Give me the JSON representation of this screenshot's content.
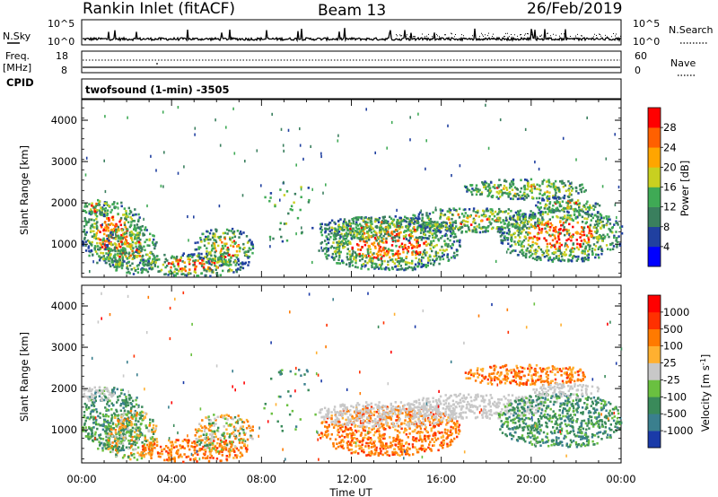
{
  "header": {
    "station": "Rankin Inlet (fitACF)",
    "beam": "Beam 13",
    "date": "26/Feb/2019"
  },
  "nsky_panel": {
    "left_label": "N.Sky",
    "right_label": "N.Search",
    "left_ticks": [
      "10^5",
      "10^0"
    ],
    "right_ticks": [
      "10^5",
      "10^0"
    ]
  },
  "freq_panel": {
    "left_label_1": "Freq.",
    "left_label_2": "[MHz]",
    "right_label": "Nave",
    "left_ticks": [
      "18",
      "8"
    ],
    "right_ticks": [
      "60",
      "0"
    ]
  },
  "cpid": {
    "label": "CPID",
    "value": "twofsound (1-min) -3505"
  },
  "chart_data": [
    {
      "type": "heatmap",
      "name": "power",
      "ylabel": "Slant Range [km]",
      "ylim": [
        200,
        4500
      ],
      "y_ticks": [
        "1000",
        "2000",
        "3000",
        "4000"
      ],
      "x_ticks": [
        "00:00",
        "04:00",
        "08:00",
        "12:00",
        "16:00",
        "20:00",
        "00:00"
      ],
      "xlim_hours": [
        0,
        24
      ],
      "colorbar": {
        "label": "Power [dB]",
        "ticks": [
          "4",
          "8",
          "12",
          "16",
          "20",
          "24",
          "28"
        ],
        "colors": [
          "#0000ff",
          "#2040a0",
          "#3a7f5e",
          "#3faa55",
          "#c8d020",
          "#ffa500",
          "#ff6000",
          "#ff0000"
        ]
      }
    },
    {
      "type": "heatmap",
      "name": "velocity",
      "ylabel": "Slant Range [km]",
      "xlabel": "Time UT",
      "ylim": [
        200,
        4500
      ],
      "y_ticks": [
        "1000",
        "2000",
        "3000",
        "4000"
      ],
      "x_ticks": [
        "00:00",
        "04:00",
        "08:00",
        "12:00",
        "16:00",
        "20:00",
        "00:00"
      ],
      "xlim_hours": [
        0,
        24
      ],
      "colorbar": {
        "label": "Velocity [m s",
        "label_sup": "-1",
        "label_end": "]",
        "ticks": [
          "1000",
          "500",
          "100",
          "25",
          "-25",
          "-100",
          "-500",
          "-1000"
        ],
        "colors": [
          "#1a3aa8",
          "#3a7f8e",
          "#3a8a5a",
          "#6ac040",
          "#c8c8c8",
          "#ffb030",
          "#ff7a00",
          "#ff3000",
          "#ff0000"
        ]
      }
    }
  ]
}
